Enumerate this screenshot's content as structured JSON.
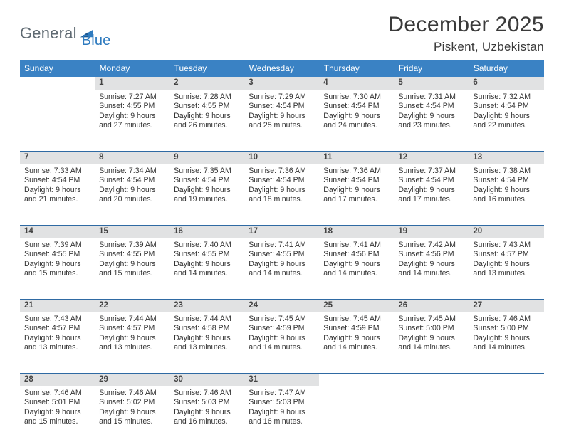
{
  "brand": {
    "text_general": "General",
    "text_blue": "Blue",
    "mark_color": "#2f7bbf"
  },
  "header": {
    "month_title": "December 2025",
    "location": "Piskent, Uzbekistan"
  },
  "colors": {
    "header_bg": "#3a82c4",
    "daynum_bg": "#e1e2e3",
    "rule": "#2f6aa3",
    "text": "#333333"
  },
  "weekdays": [
    "Sunday",
    "Monday",
    "Tuesday",
    "Wednesday",
    "Thursday",
    "Friday",
    "Saturday"
  ],
  "weeks": [
    {
      "nums": [
        "",
        "1",
        "2",
        "3",
        "4",
        "5",
        "6"
      ],
      "cells": [
        {
          "blank": true
        },
        {
          "sunrise": "Sunrise: 7:27 AM",
          "sunset": "Sunset: 4:55 PM",
          "day1": "Daylight: 9 hours",
          "day2": "and 27 minutes."
        },
        {
          "sunrise": "Sunrise: 7:28 AM",
          "sunset": "Sunset: 4:55 PM",
          "day1": "Daylight: 9 hours",
          "day2": "and 26 minutes."
        },
        {
          "sunrise": "Sunrise: 7:29 AM",
          "sunset": "Sunset: 4:54 PM",
          "day1": "Daylight: 9 hours",
          "day2": "and 25 minutes."
        },
        {
          "sunrise": "Sunrise: 7:30 AM",
          "sunset": "Sunset: 4:54 PM",
          "day1": "Daylight: 9 hours",
          "day2": "and 24 minutes."
        },
        {
          "sunrise": "Sunrise: 7:31 AM",
          "sunset": "Sunset: 4:54 PM",
          "day1": "Daylight: 9 hours",
          "day2": "and 23 minutes."
        },
        {
          "sunrise": "Sunrise: 7:32 AM",
          "sunset": "Sunset: 4:54 PM",
          "day1": "Daylight: 9 hours",
          "day2": "and 22 minutes."
        }
      ]
    },
    {
      "nums": [
        "7",
        "8",
        "9",
        "10",
        "11",
        "12",
        "13"
      ],
      "cells": [
        {
          "sunrise": "Sunrise: 7:33 AM",
          "sunset": "Sunset: 4:54 PM",
          "day1": "Daylight: 9 hours",
          "day2": "and 21 minutes."
        },
        {
          "sunrise": "Sunrise: 7:34 AM",
          "sunset": "Sunset: 4:54 PM",
          "day1": "Daylight: 9 hours",
          "day2": "and 20 minutes."
        },
        {
          "sunrise": "Sunrise: 7:35 AM",
          "sunset": "Sunset: 4:54 PM",
          "day1": "Daylight: 9 hours",
          "day2": "and 19 minutes."
        },
        {
          "sunrise": "Sunrise: 7:36 AM",
          "sunset": "Sunset: 4:54 PM",
          "day1": "Daylight: 9 hours",
          "day2": "and 18 minutes."
        },
        {
          "sunrise": "Sunrise: 7:36 AM",
          "sunset": "Sunset: 4:54 PM",
          "day1": "Daylight: 9 hours",
          "day2": "and 17 minutes."
        },
        {
          "sunrise": "Sunrise: 7:37 AM",
          "sunset": "Sunset: 4:54 PM",
          "day1": "Daylight: 9 hours",
          "day2": "and 17 minutes."
        },
        {
          "sunrise": "Sunrise: 7:38 AM",
          "sunset": "Sunset: 4:54 PM",
          "day1": "Daylight: 9 hours",
          "day2": "and 16 minutes."
        }
      ]
    },
    {
      "nums": [
        "14",
        "15",
        "16",
        "17",
        "18",
        "19",
        "20"
      ],
      "cells": [
        {
          "sunrise": "Sunrise: 7:39 AM",
          "sunset": "Sunset: 4:55 PM",
          "day1": "Daylight: 9 hours",
          "day2": "and 15 minutes."
        },
        {
          "sunrise": "Sunrise: 7:39 AM",
          "sunset": "Sunset: 4:55 PM",
          "day1": "Daylight: 9 hours",
          "day2": "and 15 minutes."
        },
        {
          "sunrise": "Sunrise: 7:40 AM",
          "sunset": "Sunset: 4:55 PM",
          "day1": "Daylight: 9 hours",
          "day2": "and 14 minutes."
        },
        {
          "sunrise": "Sunrise: 7:41 AM",
          "sunset": "Sunset: 4:55 PM",
          "day1": "Daylight: 9 hours",
          "day2": "and 14 minutes."
        },
        {
          "sunrise": "Sunrise: 7:41 AM",
          "sunset": "Sunset: 4:56 PM",
          "day1": "Daylight: 9 hours",
          "day2": "and 14 minutes."
        },
        {
          "sunrise": "Sunrise: 7:42 AM",
          "sunset": "Sunset: 4:56 PM",
          "day1": "Daylight: 9 hours",
          "day2": "and 14 minutes."
        },
        {
          "sunrise": "Sunrise: 7:43 AM",
          "sunset": "Sunset: 4:57 PM",
          "day1": "Daylight: 9 hours",
          "day2": "and 13 minutes."
        }
      ]
    },
    {
      "nums": [
        "21",
        "22",
        "23",
        "24",
        "25",
        "26",
        "27"
      ],
      "cells": [
        {
          "sunrise": "Sunrise: 7:43 AM",
          "sunset": "Sunset: 4:57 PM",
          "day1": "Daylight: 9 hours",
          "day2": "and 13 minutes."
        },
        {
          "sunrise": "Sunrise: 7:44 AM",
          "sunset": "Sunset: 4:57 PM",
          "day1": "Daylight: 9 hours",
          "day2": "and 13 minutes."
        },
        {
          "sunrise": "Sunrise: 7:44 AM",
          "sunset": "Sunset: 4:58 PM",
          "day1": "Daylight: 9 hours",
          "day2": "and 13 minutes."
        },
        {
          "sunrise": "Sunrise: 7:45 AM",
          "sunset": "Sunset: 4:59 PM",
          "day1": "Daylight: 9 hours",
          "day2": "and 14 minutes."
        },
        {
          "sunrise": "Sunrise: 7:45 AM",
          "sunset": "Sunset: 4:59 PM",
          "day1": "Daylight: 9 hours",
          "day2": "and 14 minutes."
        },
        {
          "sunrise": "Sunrise: 7:45 AM",
          "sunset": "Sunset: 5:00 PM",
          "day1": "Daylight: 9 hours",
          "day2": "and 14 minutes."
        },
        {
          "sunrise": "Sunrise: 7:46 AM",
          "sunset": "Sunset: 5:00 PM",
          "day1": "Daylight: 9 hours",
          "day2": "and 14 minutes."
        }
      ]
    },
    {
      "nums": [
        "28",
        "29",
        "30",
        "31",
        "",
        "",
        ""
      ],
      "cells": [
        {
          "sunrise": "Sunrise: 7:46 AM",
          "sunset": "Sunset: 5:01 PM",
          "day1": "Daylight: 9 hours",
          "day2": "and 15 minutes."
        },
        {
          "sunrise": "Sunrise: 7:46 AM",
          "sunset": "Sunset: 5:02 PM",
          "day1": "Daylight: 9 hours",
          "day2": "and 15 minutes."
        },
        {
          "sunrise": "Sunrise: 7:46 AM",
          "sunset": "Sunset: 5:03 PM",
          "day1": "Daylight: 9 hours",
          "day2": "and 16 minutes."
        },
        {
          "sunrise": "Sunrise: 7:47 AM",
          "sunset": "Sunset: 5:03 PM",
          "day1": "Daylight: 9 hours",
          "day2": "and 16 minutes."
        },
        {
          "blank": true
        },
        {
          "blank": true
        },
        {
          "blank": true
        }
      ]
    }
  ]
}
